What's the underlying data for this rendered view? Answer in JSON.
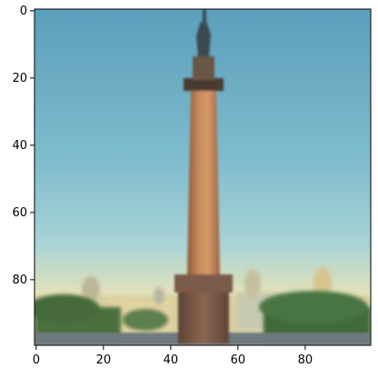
{
  "image": {
    "subject": "column-monument-photo",
    "pixel_grid": {
      "width": 100,
      "height": 100
    }
  },
  "axes": {
    "x_ticks": [
      "0",
      "20",
      "40",
      "60",
      "80"
    ],
    "y_ticks": [
      "0",
      "20",
      "40",
      "60",
      "80"
    ],
    "xlim": [
      -0.5,
      99.5
    ],
    "ylim": [
      99.5,
      -0.5
    ],
    "frame_color": "#000000"
  },
  "colors": {
    "sky_top": "#5ea3bd",
    "sky_mid": "#86c2d2",
    "sky_horizon": "#dfe0b8",
    "column": "#c98a5c",
    "column_shadow": "#8c5a3a",
    "pedestal": "#7a5a48",
    "statue": "#3b4a52",
    "trees": "#3f6a3a",
    "building": "#d9c79a",
    "ground": "#6e7a7e"
  }
}
